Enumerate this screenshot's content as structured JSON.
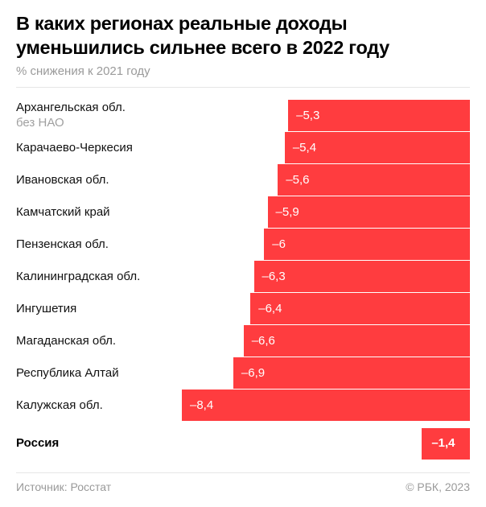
{
  "chart_data": {
    "type": "bar",
    "orientation": "horizontal",
    "title": "В каких регионах реальные доходы уменьшились сильнее всего в 2022 году",
    "subtitle": "% снижения к 2021 году",
    "xlabel": "",
    "ylabel": "",
    "xlim": [
      -8.4,
      0
    ],
    "grid": false,
    "categories": [
      {
        "name": "Архангельская обл.",
        "note": "без НАО"
      },
      {
        "name": "Карачаево-Черкесия"
      },
      {
        "name": "Ивановская обл."
      },
      {
        "name": "Камчатский край"
      },
      {
        "name": "Пензенская обл."
      },
      {
        "name": "Калининградская обл."
      },
      {
        "name": "Ингушетия"
      },
      {
        "name": "Магаданская обл."
      },
      {
        "name": "Республика Алтай"
      },
      {
        "name": "Калужская обл."
      }
    ],
    "values": [
      -5.3,
      -5.4,
      -5.6,
      -5.9,
      -6,
      -6.3,
      -6.4,
      -6.6,
      -6.9,
      -8.4
    ],
    "value_labels": [
      "–5,3",
      "–5,4",
      "–5,6",
      "–5,9",
      "–6",
      "–6,3",
      "–6,4",
      "–6,6",
      "–6,9",
      "–8,4"
    ],
    "total": {
      "name": "Россия",
      "value": -1.4,
      "value_label": "–1,4"
    },
    "bar_color": "#ff3c3f"
  },
  "footer": {
    "source": "Источник: Росстат",
    "copyright": "© РБК, 2023"
  }
}
